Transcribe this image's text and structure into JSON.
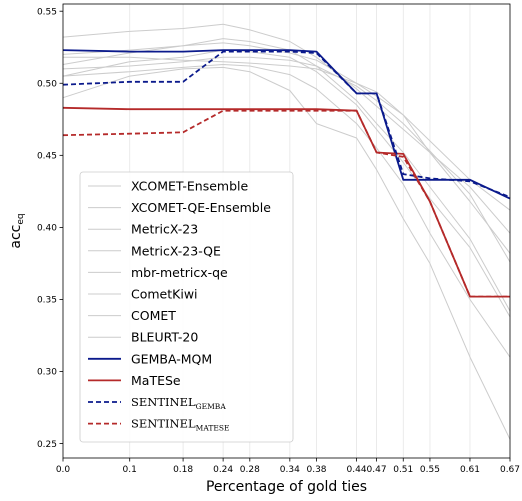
{
  "chart_data": {
    "type": "line",
    "title": "",
    "xlabel": "Percentage of gold ties",
    "ylabel": "acc",
    "ylabel_sub": "eq",
    "xlim": [
      0,
      0.67
    ],
    "ylim": [
      0.24,
      0.555
    ],
    "x_ticks": [
      0.0,
      0.1,
      0.18,
      0.24,
      0.28,
      0.34,
      0.38,
      0.44,
      0.47,
      0.51,
      0.55,
      0.61,
      0.67
    ],
    "x_tick_labels": [
      "0.0",
      "0.1",
      "0.18",
      "0.24",
      "0.28",
      "0.34",
      "0.38",
      "0.44",
      "0.47",
      "0.51",
      "0.55",
      "0.61",
      "0.67"
    ],
    "y_ticks": [
      0.25,
      0.3,
      0.35,
      0.4,
      0.45,
      0.5,
      0.55
    ],
    "y_tick_labels": [
      "0.25",
      "0.30",
      "0.35",
      "0.40",
      "0.45",
      "0.50",
      "0.55"
    ],
    "grid": "vertical",
    "legend_position": "lower-left",
    "x": [
      0.0,
      0.1,
      0.18,
      0.24,
      0.28,
      0.34,
      0.38,
      0.44,
      0.47,
      0.51,
      0.55,
      0.61,
      0.67
    ],
    "series": [
      {
        "name": "XCOMET-Ensemble",
        "color": "#cccccc",
        "style": "solid",
        "width": 1,
        "values": [
          0.513,
          0.521,
          0.526,
          0.531,
          0.529,
          0.523,
          0.512,
          0.488,
          0.472,
          0.452,
          0.428,
          0.392,
          0.342
        ]
      },
      {
        "name": "XCOMET-QE-Ensemble",
        "color": "#cccccc",
        "style": "solid",
        "width": 1,
        "values": [
          0.505,
          0.515,
          0.518,
          0.523,
          0.522,
          0.518,
          0.508,
          0.485,
          0.468,
          0.445,
          0.42,
          0.386,
          0.338
        ]
      },
      {
        "name": "MetricX-23",
        "color": "#cccccc",
        "style": "solid",
        "width": 1,
        "values": [
          0.532,
          0.536,
          0.538,
          0.541,
          0.537,
          0.529,
          0.518,
          0.496,
          0.484,
          0.468,
          0.452,
          0.428,
          0.396
        ]
      },
      {
        "name": "MetricX-23-QE",
        "color": "#cccccc",
        "style": "solid",
        "width": 1,
        "values": [
          0.52,
          0.523,
          0.526,
          0.528,
          0.526,
          0.521,
          0.516,
          0.5,
          0.491,
          0.478,
          0.46,
          0.433,
          0.412
        ]
      },
      {
        "name": "mbr-metricx-qe",
        "color": "#cccccc",
        "style": "solid",
        "width": 1,
        "values": [
          0.518,
          0.518,
          0.516,
          0.515,
          0.514,
          0.512,
          0.51,
          0.5,
          0.494,
          0.478,
          0.452,
          0.418,
          0.382
        ]
      },
      {
        "name": "CometKiwi",
        "color": "#cccccc",
        "style": "solid",
        "width": 1,
        "values": [
          0.51,
          0.512,
          0.515,
          0.518,
          0.518,
          0.516,
          0.512,
          0.498,
          0.488,
          0.472,
          0.453,
          0.423,
          0.376
        ]
      },
      {
        "name": "COMET",
        "color": "#cccccc",
        "style": "solid",
        "width": 1,
        "values": [
          0.505,
          0.508,
          0.511,
          0.513,
          0.512,
          0.506,
          0.496,
          0.472,
          0.455,
          0.43,
          0.396,
          0.35,
          0.31
        ]
      },
      {
        "name": "BLEURT-20",
        "color": "#cccccc",
        "style": "solid",
        "width": 1,
        "values": [
          0.49,
          0.505,
          0.51,
          0.511,
          0.508,
          0.495,
          0.472,
          0.462,
          0.44,
          0.406,
          0.375,
          0.31,
          0.253
        ]
      },
      {
        "name": "GEMBA-MQM",
        "color": "#0b1a8c",
        "style": "solid",
        "width": 1.8,
        "values": [
          0.523,
          0.522,
          0.522,
          0.523,
          0.523,
          0.523,
          0.522,
          0.493,
          0.493,
          0.433,
          0.433,
          0.433,
          0.42
        ]
      },
      {
        "name": "MaTESe",
        "color": "#b52a2a",
        "style": "solid",
        "width": 1.8,
        "values": [
          0.483,
          0.482,
          0.482,
          0.482,
          0.482,
          0.482,
          0.482,
          0.481,
          0.452,
          0.451,
          0.418,
          0.352,
          0.352
        ]
      },
      {
        "name": "SENTINEL",
        "name_sub": "GEMBA",
        "color": "#0b1a8c",
        "style": "dashed",
        "width": 1.8,
        "values": [
          0.499,
          0.501,
          0.501,
          0.522,
          0.522,
          0.522,
          0.521,
          0.493,
          0.493,
          0.437,
          0.434,
          0.432,
          0.421
        ]
      },
      {
        "name": "SENTINEL",
        "name_sub": "MATESE",
        "color": "#b52a2a",
        "style": "dashed",
        "width": 1.8,
        "values": [
          0.464,
          0.465,
          0.466,
          0.481,
          0.481,
          0.481,
          0.481,
          0.481,
          0.452,
          0.449,
          0.418,
          0.352,
          0.352
        ]
      }
    ]
  }
}
